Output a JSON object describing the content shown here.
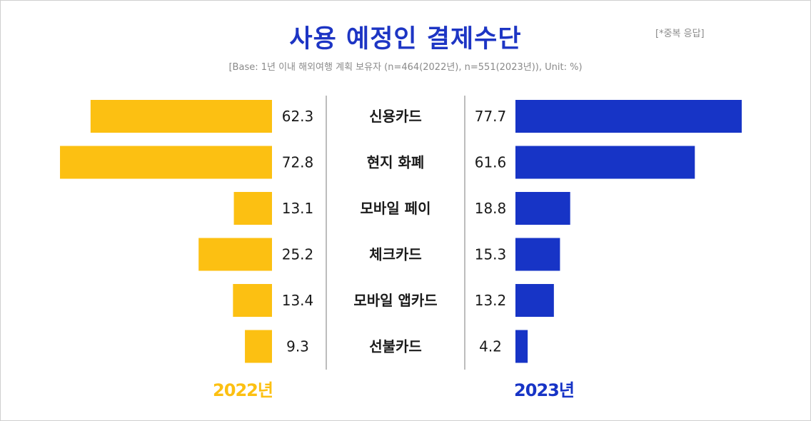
{
  "title": "사용 예정인 결제수단",
  "note": "[*중복 응답]",
  "base": "[Base: 1년 이내 해외여행 계획 보유자 (n=464(2022년), n=551(2023년)), Unit: %)",
  "colors": {
    "left": "#fcc012",
    "right": "#1734c6",
    "divider": "#bdbdbd"
  },
  "chart_data": {
    "type": "bar",
    "orientation": "horizontal-butterfly",
    "categories": [
      "신용카드",
      "현지 화폐",
      "모바일 페이",
      "체크카드",
      "모바일 앱카드",
      "선불카드"
    ],
    "series": [
      {
        "name": "2022년",
        "values": [
          62.3,
          72.8,
          13.1,
          25.2,
          13.4,
          9.3
        ]
      },
      {
        "name": "2023년",
        "values": [
          77.7,
          61.6,
          18.8,
          15.3,
          13.2,
          4.2
        ]
      }
    ],
    "value_labels_left": [
      "62.3",
      "72.8",
      "13.1",
      "25.2",
      "13.4",
      "9.3"
    ],
    "value_labels_right": [
      "77.7",
      "61.6",
      "18.8",
      "15.3",
      "13.2",
      "4.2"
    ],
    "xlim": [
      0,
      80
    ],
    "grid": false,
    "unit": "%"
  }
}
